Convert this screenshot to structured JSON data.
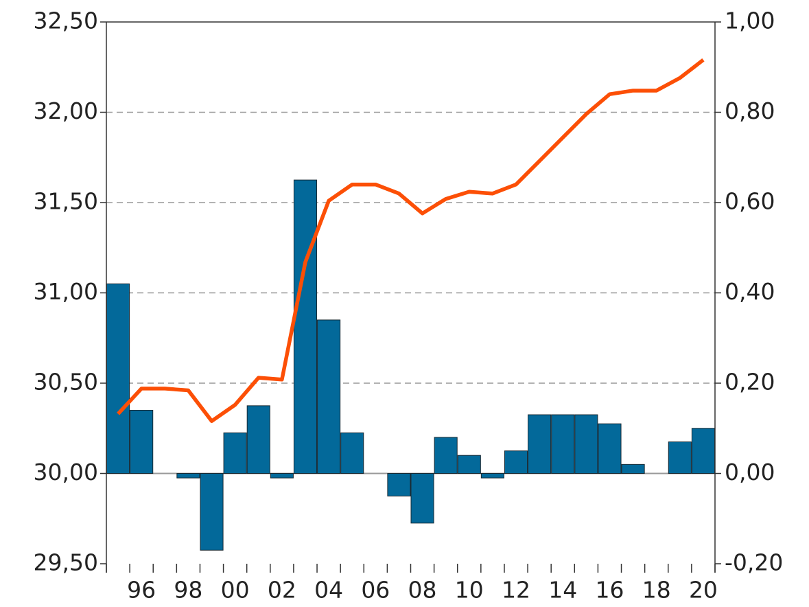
{
  "chart_data": {
    "type": "bar",
    "categories": [
      null,
      "96",
      null,
      "98",
      null,
      "00",
      null,
      "02",
      null,
      "04",
      null,
      "06",
      null,
      "08",
      null,
      "10",
      null,
      "12",
      null,
      "14",
      null,
      "16",
      null,
      "18",
      null,
      "20"
    ],
    "series": [
      {
        "type": "bar",
        "axis": "y2",
        "color": "#03699a",
        "values": [
          0.42,
          0.14,
          0,
          -0.01,
          -0.17,
          0.09,
          0.15,
          -0.01,
          0.65,
          0.34,
          0.09,
          0,
          -0.05,
          -0.11,
          0.08,
          0.04,
          -0.01,
          0.05,
          0.13,
          0.13,
          0.13,
          0.11,
          0.02,
          0,
          0.07,
          0.1
        ]
      },
      {
        "type": "line",
        "color": "#fc4f06",
        "values": [
          30.33,
          30.47,
          30.47,
          30.46,
          30.29,
          30.38,
          30.53,
          30.52,
          31.17,
          31.51,
          31.6,
          31.6,
          31.55,
          31.44,
          31.52,
          31.56,
          31.55,
          31.6,
          31.73,
          31.86,
          31.99,
          32.1,
          32.12,
          32.12,
          32.19,
          32.29
        ]
      }
    ],
    "ylim": [
      29.5,
      32.5
    ],
    "yticks": [
      {
        "value": 29.5,
        "label": "29,50"
      },
      {
        "value": 30,
        "label": "30,00"
      },
      {
        "value": 30.5,
        "label": "30,50"
      },
      {
        "value": 31,
        "label": "31,00"
      },
      {
        "value": 31.5,
        "label": "31,50"
      },
      {
        "value": 32,
        "label": "32,00"
      },
      {
        "value": 32.5,
        "label": "32,50"
      }
    ],
    "y2lim": [
      -0.2,
      1.0
    ],
    "y2ticks": [
      {
        "value": -0.2,
        "label": "-0,20"
      },
      {
        "value": 0,
        "label": "0,00"
      },
      {
        "value": 0.2,
        "label": "0,20"
      },
      {
        "value": 0.4,
        "label": "0,40"
      },
      {
        "value": 0.6,
        "label": "0,60"
      },
      {
        "value": 0.8,
        "label": "0,80"
      },
      {
        "value": 1.0,
        "label": "1,00"
      }
    ],
    "grid": true
  }
}
